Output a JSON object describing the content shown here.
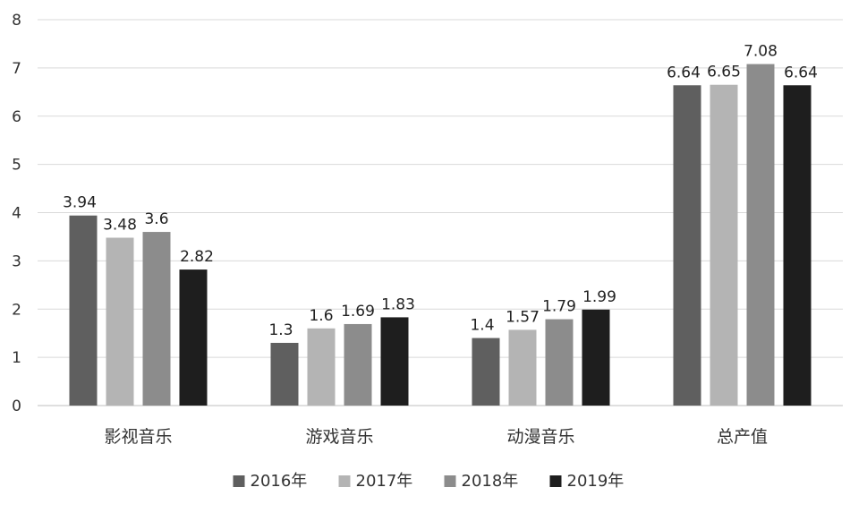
{
  "chart_data": {
    "type": "bar",
    "categories": [
      "影视音乐",
      "游戏音乐",
      "动漫音乐",
      "总产值"
    ],
    "series": [
      {
        "name": "2016年",
        "color": "#5f5f5f",
        "values": [
          3.94,
          1.3,
          1.4,
          6.64
        ],
        "labels": [
          "3.94",
          "1.3",
          "1.4",
          "6.64"
        ]
      },
      {
        "name": "2017年",
        "color": "#b4b4b4",
        "values": [
          3.48,
          1.6,
          1.57,
          6.65
        ],
        "labels": [
          "3.48",
          "1.6",
          "1.57",
          "6.65"
        ]
      },
      {
        "name": "2018年",
        "color": "#8c8c8c",
        "values": [
          3.6,
          1.69,
          1.79,
          7.08
        ],
        "labels": [
          "3.6",
          "1.69",
          "1.79",
          "7.08"
        ]
      },
      {
        "name": "2019年",
        "color": "#1e1e1e",
        "values": [
          2.82,
          1.83,
          1.99,
          6.64
        ],
        "labels": [
          "2.82",
          "1.83",
          "1.99",
          "6.64"
        ]
      }
    ],
    "ylim": [
      0,
      8
    ],
    "yticks": [
      "0",
      "1",
      "2",
      "3",
      "4",
      "5",
      "6",
      "7",
      "8"
    ],
    "grid": true,
    "legend_position": "bottom",
    "title": "",
    "xlabel": "",
    "ylabel": ""
  }
}
